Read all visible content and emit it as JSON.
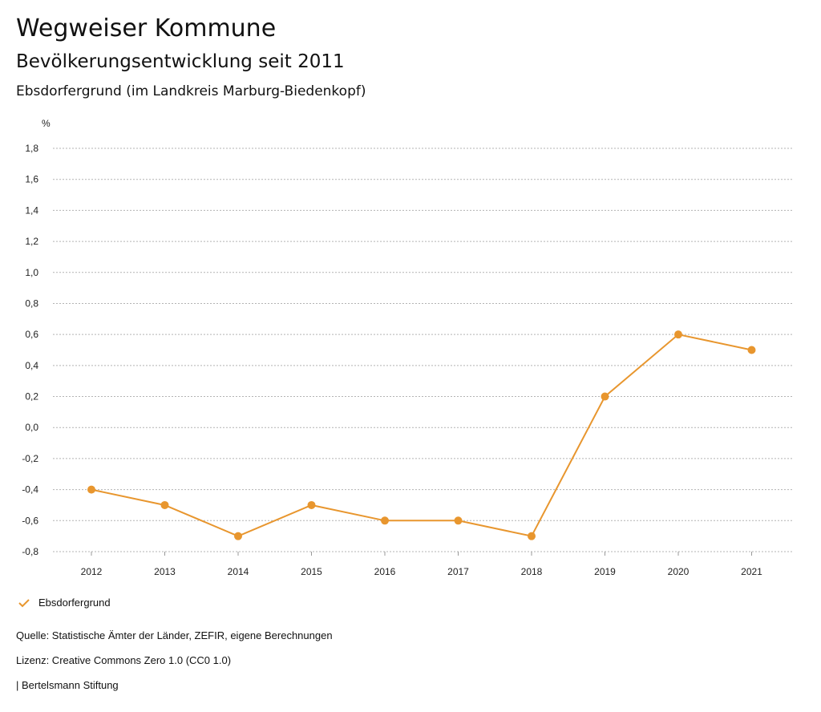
{
  "header": {
    "title": "Wegweiser Kommune",
    "subtitle": "Bevölkerungsentwicklung seit 2011",
    "place": "Ebsdorfergrund (im Landkreis Marburg-Biedenkopf)"
  },
  "legend": {
    "label": "Ebsdorfergrund",
    "icon": "check-icon"
  },
  "footer": {
    "source": "Quelle: Statistische Ämter der Länder, ZEFIR, eigene Berechnungen",
    "license": "Lizenz: Creative Commons Zero 1.0 (CC0 1.0)",
    "publisher": "| Bertelsmann Stiftung"
  },
  "colors": {
    "series": "#E8962E",
    "grid": "#b3b3b3"
  },
  "chart_data": {
    "type": "line",
    "ylabel": "%",
    "ylim": [
      -0.8,
      1.8
    ],
    "yticks": [
      "-0,8",
      "-0,6",
      "-0,4",
      "-0,2",
      "0,0",
      "0,2",
      "0,4",
      "0,6",
      "0,8",
      "1,0",
      "1,2",
      "1,4",
      "1,6",
      "1,8"
    ],
    "categories": [
      "2012",
      "2013",
      "2014",
      "2015",
      "2016",
      "2017",
      "2018",
      "2019",
      "2020",
      "2021"
    ],
    "grid": true,
    "legend_position": "bottom-left",
    "series": [
      {
        "name": "Ebsdorfergrund",
        "values": [
          -0.4,
          -0.5,
          -0.7,
          -0.5,
          -0.6,
          -0.6,
          -0.7,
          0.2,
          0.6,
          0.5
        ]
      }
    ]
  }
}
